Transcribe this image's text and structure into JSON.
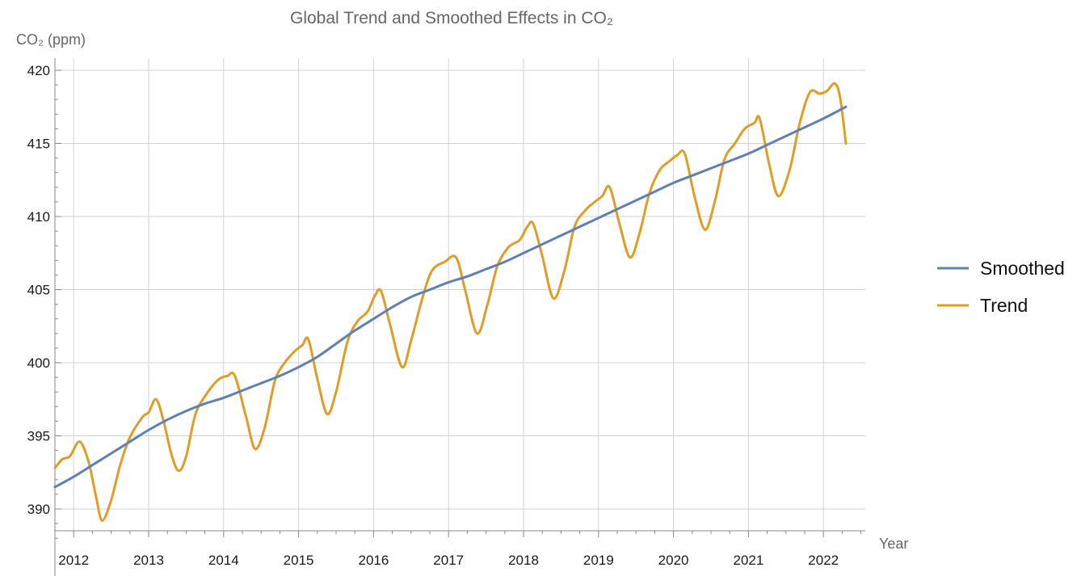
{
  "chart_data": {
    "type": "line",
    "title": "Global Trend and Smoothed Effects in CO₂",
    "xlabel": "Year",
    "ylabel": "CO₂ (ppm)",
    "xlim": [
      2011.75,
      2022.5
    ],
    "ylim": [
      388,
      420.5
    ],
    "x_ticks": [
      2012,
      2013,
      2014,
      2015,
      2016,
      2017,
      2018,
      2019,
      2020,
      2021,
      2022
    ],
    "y_ticks": [
      390,
      395,
      400,
      405,
      410,
      415,
      420
    ],
    "grid": true,
    "legend_position": "right",
    "series": [
      {
        "name": "Smoothed",
        "color": "#5e81b5",
        "points": [
          [
            2011.75,
            391.5
          ],
          [
            2012.0,
            392.2
          ],
          [
            2012.25,
            393.0
          ],
          [
            2012.5,
            393.8
          ],
          [
            2012.75,
            394.6
          ],
          [
            2013.0,
            395.4
          ],
          [
            2013.25,
            396.1
          ],
          [
            2013.5,
            396.7
          ],
          [
            2013.75,
            397.2
          ],
          [
            2014.0,
            397.6
          ],
          [
            2014.25,
            398.1
          ],
          [
            2014.5,
            398.6
          ],
          [
            2014.75,
            399.1
          ],
          [
            2015.0,
            399.7
          ],
          [
            2015.25,
            400.4
          ],
          [
            2015.5,
            401.3
          ],
          [
            2015.75,
            402.2
          ],
          [
            2016.0,
            403.0
          ],
          [
            2016.25,
            403.8
          ],
          [
            2016.5,
            404.5
          ],
          [
            2016.75,
            405.0
          ],
          [
            2017.0,
            405.5
          ],
          [
            2017.25,
            405.9
          ],
          [
            2017.5,
            406.4
          ],
          [
            2017.75,
            406.9
          ],
          [
            2018.0,
            407.5
          ],
          [
            2018.25,
            408.1
          ],
          [
            2018.5,
            408.7
          ],
          [
            2018.75,
            409.3
          ],
          [
            2019.0,
            409.9
          ],
          [
            2019.25,
            410.5
          ],
          [
            2019.5,
            411.1
          ],
          [
            2019.75,
            411.7
          ],
          [
            2020.0,
            412.3
          ],
          [
            2020.25,
            412.8
          ],
          [
            2020.5,
            413.3
          ],
          [
            2020.75,
            413.8
          ],
          [
            2021.0,
            414.3
          ],
          [
            2021.25,
            414.9
          ],
          [
            2021.5,
            415.5
          ],
          [
            2021.75,
            416.1
          ],
          [
            2022.0,
            416.7
          ],
          [
            2022.3,
            417.5
          ]
        ]
      },
      {
        "name": "Trend",
        "color": "#e19c24",
        "points": [
          [
            2011.75,
            392.8
          ],
          [
            2011.85,
            393.4
          ],
          [
            2011.95,
            393.6
          ],
          [
            2012.08,
            394.6
          ],
          [
            2012.2,
            393.2
          ],
          [
            2012.3,
            390.8
          ],
          [
            2012.38,
            389.2
          ],
          [
            2012.5,
            390.6
          ],
          [
            2012.62,
            393.0
          ],
          [
            2012.75,
            394.9
          ],
          [
            2012.92,
            396.3
          ],
          [
            2013.0,
            396.6
          ],
          [
            2013.1,
            397.5
          ],
          [
            2013.2,
            396.0
          ],
          [
            2013.3,
            393.8
          ],
          [
            2013.4,
            392.6
          ],
          [
            2013.5,
            393.6
          ],
          [
            2013.62,
            396.4
          ],
          [
            2013.75,
            397.7
          ],
          [
            2013.92,
            398.8
          ],
          [
            2014.05,
            399.1
          ],
          [
            2014.15,
            399.1
          ],
          [
            2014.3,
            396.3
          ],
          [
            2014.42,
            394.1
          ],
          [
            2014.55,
            395.6
          ],
          [
            2014.68,
            398.7
          ],
          [
            2014.8,
            399.9
          ],
          [
            2014.95,
            400.8
          ],
          [
            2015.05,
            401.2
          ],
          [
            2015.13,
            401.6
          ],
          [
            2015.25,
            398.9
          ],
          [
            2015.38,
            396.5
          ],
          [
            2015.5,
            398.0
          ],
          [
            2015.65,
            401.4
          ],
          [
            2015.78,
            402.8
          ],
          [
            2015.92,
            403.5
          ],
          [
            2016.02,
            404.6
          ],
          [
            2016.1,
            404.9
          ],
          [
            2016.22,
            402.6
          ],
          [
            2016.38,
            399.7
          ],
          [
            2016.5,
            401.5
          ],
          [
            2016.65,
            404.4
          ],
          [
            2016.78,
            406.3
          ],
          [
            2016.95,
            406.9
          ],
          [
            2017.1,
            407.2
          ],
          [
            2017.22,
            405.0
          ],
          [
            2017.38,
            402.0
          ],
          [
            2017.52,
            404.0
          ],
          [
            2017.65,
            406.6
          ],
          [
            2017.8,
            407.9
          ],
          [
            2017.95,
            408.4
          ],
          [
            2018.05,
            409.3
          ],
          [
            2018.13,
            409.5
          ],
          [
            2018.25,
            407.3
          ],
          [
            2018.4,
            404.4
          ],
          [
            2018.55,
            406.4
          ],
          [
            2018.68,
            409.3
          ],
          [
            2018.82,
            410.4
          ],
          [
            2018.95,
            411.0
          ],
          [
            2019.05,
            411.4
          ],
          [
            2019.15,
            412.0
          ],
          [
            2019.28,
            409.5
          ],
          [
            2019.42,
            407.2
          ],
          [
            2019.55,
            408.9
          ],
          [
            2019.68,
            411.6
          ],
          [
            2019.82,
            413.2
          ],
          [
            2019.95,
            413.8
          ],
          [
            2020.05,
            414.2
          ],
          [
            2020.15,
            414.3
          ],
          [
            2020.28,
            411.4
          ],
          [
            2020.42,
            409.1
          ],
          [
            2020.55,
            411.0
          ],
          [
            2020.68,
            413.9
          ],
          [
            2020.82,
            415.0
          ],
          [
            2020.95,
            416.0
          ],
          [
            2021.08,
            416.4
          ],
          [
            2021.15,
            416.7
          ],
          [
            2021.28,
            413.5
          ],
          [
            2021.4,
            411.4
          ],
          [
            2021.55,
            413.2
          ],
          [
            2021.68,
            416.3
          ],
          [
            2021.82,
            418.5
          ],
          [
            2021.95,
            418.4
          ],
          [
            2022.05,
            418.6
          ],
          [
            2022.15,
            419.1
          ],
          [
            2022.22,
            418.2
          ],
          [
            2022.3,
            415.0
          ]
        ]
      }
    ]
  }
}
